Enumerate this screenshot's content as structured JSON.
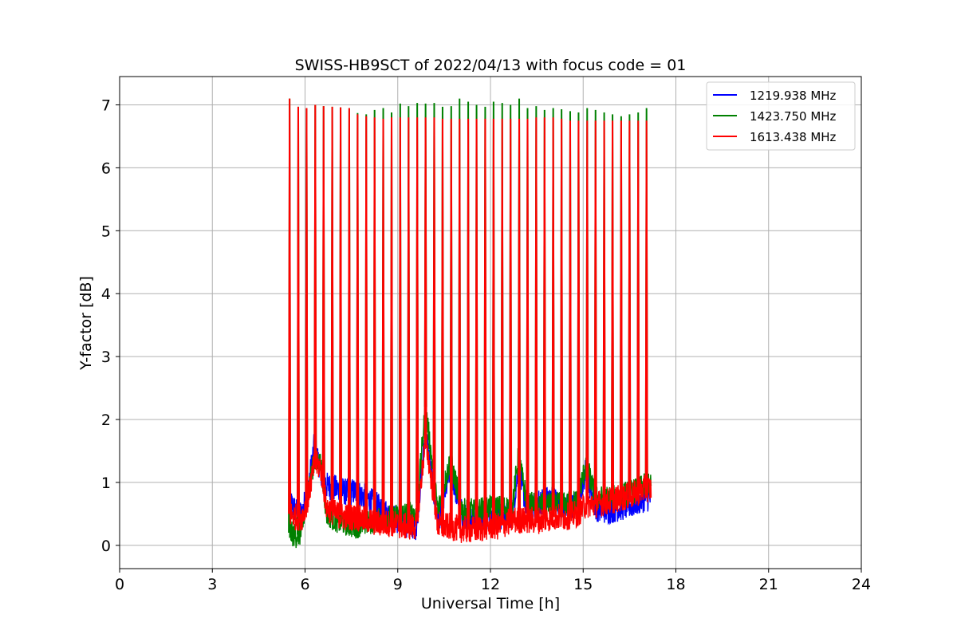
{
  "chart_data": {
    "type": "line",
    "title": "SWISS-HB9SCT of 2022/04/13 with focus code = 01",
    "xlabel": "Universal Time [h]",
    "ylabel": "Y-factor [dB]",
    "xlim": [
      0,
      24
    ],
    "ylim": [
      -0.37,
      7.45
    ],
    "xticks": [
      0,
      3,
      6,
      9,
      12,
      15,
      18,
      21,
      24
    ],
    "yticks": [
      0,
      1,
      2,
      3,
      4,
      5,
      6,
      7
    ],
    "grid": true,
    "legend_position": "top-right",
    "series": [
      {
        "name": "1219.938 MHz",
        "color": "#0000ff",
        "x": [
          5.5,
          5.7,
          5.9,
          6.1,
          6.3,
          6.5,
          6.7,
          7.0,
          7.3,
          7.6,
          8.0,
          8.4,
          8.8,
          9.2,
          9.6,
          9.9,
          10.3,
          10.7,
          11.1,
          11.5,
          11.9,
          12.3,
          12.7,
          12.9,
          13.2,
          13.6,
          14.0,
          14.4,
          14.8,
          15.1,
          15.4,
          15.8,
          16.2,
          16.6,
          17.0,
          17.2
        ],
        "y": [
          0.7,
          0.55,
          0.5,
          0.9,
          1.6,
          1.2,
          0.95,
          0.9,
          0.85,
          0.85,
          0.75,
          0.6,
          0.45,
          0.35,
          0.3,
          1.8,
          0.35,
          1.2,
          0.45,
          0.45,
          0.45,
          0.45,
          0.5,
          1.2,
          0.55,
          0.7,
          0.75,
          0.6,
          0.65,
          1.2,
          0.6,
          0.55,
          0.6,
          0.65,
          0.75,
          0.75
        ]
      },
      {
        "name": "1423.750 MHz",
        "color": "#008000",
        "x": [
          5.5,
          5.7,
          5.9,
          6.1,
          6.3,
          6.5,
          6.7,
          7.0,
          7.3,
          7.6,
          8.0,
          8.4,
          8.8,
          9.2,
          9.6,
          9.9,
          10.3,
          10.7,
          11.1,
          11.5,
          11.9,
          12.3,
          12.7,
          12.9,
          13.2,
          13.6,
          14.0,
          14.4,
          14.8,
          15.1,
          15.4,
          15.8,
          16.2,
          16.6,
          17.0,
          17.2
        ],
        "y": [
          0.2,
          0.15,
          0.2,
          0.9,
          1.35,
          1.3,
          0.5,
          0.4,
          0.35,
          0.3,
          0.35,
          0.4,
          0.45,
          0.5,
          0.5,
          2.2,
          0.55,
          1.35,
          0.55,
          0.55,
          0.6,
          0.6,
          0.6,
          1.4,
          0.65,
          0.65,
          0.65,
          0.65,
          0.7,
          1.3,
          0.75,
          0.75,
          0.8,
          0.85,
          0.95,
          0.95
        ],
        "peak_x": [
          5.5,
          5.78,
          6.05,
          6.33,
          6.6,
          6.88,
          7.15,
          7.43,
          7.7,
          7.98,
          8.25,
          8.53,
          8.8,
          9.08,
          9.35,
          9.63,
          9.9,
          10.18,
          10.45,
          10.73,
          11.0,
          11.28,
          11.55,
          11.83,
          12.1,
          12.38,
          12.65,
          12.93,
          13.2,
          13.48,
          13.75,
          14.03,
          14.3,
          14.58,
          14.85,
          15.13,
          15.4,
          15.68,
          15.95,
          16.23,
          16.5,
          16.78,
          17.05
        ],
        "peak_y": [
          7.1,
          6.97,
          6.95,
          7.0,
          6.98,
          6.97,
          6.96,
          6.95,
          6.87,
          6.85,
          6.92,
          6.95,
          6.88,
          7.02,
          6.98,
          7.03,
          7.02,
          7.03,
          6.97,
          6.98,
          7.1,
          7.05,
          7.0,
          6.97,
          7.05,
          7.03,
          7.0,
          7.1,
          6.95,
          6.98,
          6.92,
          6.95,
          6.93,
          6.9,
          6.88,
          6.95,
          6.92,
          6.88,
          6.85,
          6.82,
          6.85,
          6.88,
          6.95
        ]
      },
      {
        "name": "1613.438 MHz",
        "color": "#ff0000",
        "x": [
          5.5,
          5.7,
          5.9,
          6.1,
          6.3,
          6.5,
          6.7,
          7.0,
          7.3,
          7.6,
          8.0,
          8.4,
          8.8,
          9.2,
          9.6,
          9.9,
          10.3,
          10.7,
          11.1,
          11.5,
          11.9,
          12.3,
          12.7,
          12.9,
          13.2,
          13.6,
          14.0,
          14.4,
          14.8,
          15.1,
          15.4,
          15.8,
          16.2,
          16.6,
          17.0,
          17.2
        ],
        "y": [
          0.5,
          0.45,
          0.45,
          0.75,
          1.3,
          1.25,
          0.6,
          0.5,
          0.45,
          0.45,
          0.4,
          0.35,
          0.35,
          0.3,
          0.3,
          1.7,
          0.3,
          0.3,
          0.25,
          0.25,
          0.3,
          0.3,
          0.4,
          0.4,
          0.4,
          0.4,
          0.45,
          0.45,
          0.5,
          0.65,
          0.65,
          0.7,
          0.75,
          0.8,
          0.9,
          0.9
        ],
        "peak_x": [
          5.5,
          5.78,
          6.05,
          6.33,
          6.6,
          6.88,
          7.15,
          7.43,
          7.7,
          7.98,
          8.25,
          8.53,
          8.8,
          9.08,
          9.35,
          9.63,
          9.9,
          10.18,
          10.45,
          10.73,
          11.0,
          11.28,
          11.55,
          11.83,
          12.1,
          12.38,
          12.65,
          12.93,
          13.2,
          13.48,
          13.75,
          14.03,
          14.3,
          14.58,
          14.85,
          15.13,
          15.4,
          15.68,
          15.95,
          16.23,
          16.5,
          16.78,
          17.05
        ],
        "peak_y": [
          7.1,
          6.97,
          6.95,
          7.0,
          6.98,
          6.97,
          6.96,
          6.95,
          6.85,
          6.82,
          6.8,
          6.78,
          6.8,
          6.8,
          6.8,
          6.8,
          6.8,
          6.8,
          6.78,
          6.78,
          6.78,
          6.78,
          6.78,
          6.78,
          6.78,
          6.78,
          6.78,
          6.78,
          6.78,
          6.8,
          6.8,
          6.8,
          6.78,
          6.75,
          6.75,
          6.75,
          6.75,
          6.75,
          6.75,
          6.75,
          6.75,
          6.75,
          6.75
        ]
      }
    ]
  }
}
